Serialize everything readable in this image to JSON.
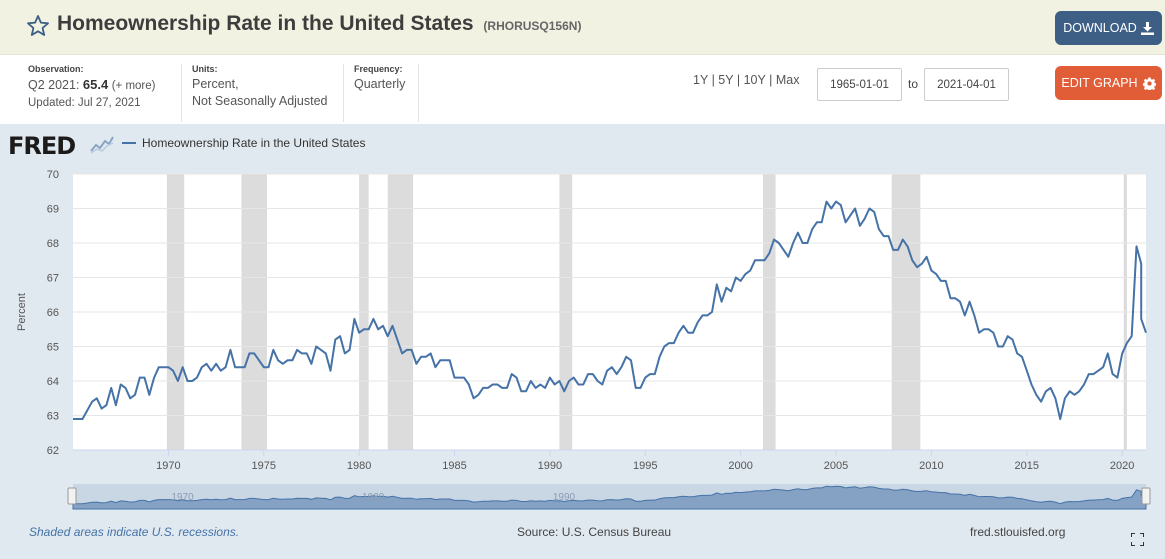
{
  "header": {
    "title": "Homeownership Rate in the United States",
    "series_id": "(RHORUSQ156N)",
    "download_label": "DOWNLOAD"
  },
  "meta": {
    "observation_label": "Observation:",
    "observation_period": "Q2 2021:",
    "observation_value": "65.4",
    "observation_more": "(+ more)",
    "updated": "Updated: Jul 27, 2021",
    "units_label": "Units:",
    "units_line1": "Percent,",
    "units_line2": "Not Seasonally Adjusted",
    "frequency_label": "Frequency:",
    "frequency_value": "Quarterly"
  },
  "controls": {
    "range_1y": "1Y",
    "range_5y": "5Y",
    "range_10y": "10Y",
    "range_max": "Max",
    "separator": "|",
    "start_date": "1965-01-01",
    "to_label": "to",
    "end_date": "2021-04-01",
    "edit_label": "EDIT GRAPH"
  },
  "logo": {
    "text": "FRED"
  },
  "footer": {
    "recession_note": "Shaded areas indicate U.S. recessions.",
    "source": "Source: U.S. Census Bureau",
    "url": "fred.stlouisfed.org"
  },
  "colors": {
    "line": "#4572a7",
    "recession": "#dcdcdc",
    "download": "#3d5f86",
    "edit": "#e05d37",
    "panel": "#e1e9f0"
  },
  "chart_data": {
    "type": "line",
    "ylabel": "Percent",
    "ylim": [
      62,
      70
    ],
    "yticks": [
      "62",
      "63",
      "64",
      "65",
      "66",
      "67",
      "68",
      "69",
      "70"
    ],
    "xlim": [
      1965.0,
      2021.25
    ],
    "xticks": [
      "1970",
      "1975",
      "1980",
      "1985",
      "1990",
      "1995",
      "2000",
      "2005",
      "2010",
      "2015",
      "2020"
    ],
    "navigator_labels": [
      "1970",
      "1980",
      "1990"
    ],
    "grid": true,
    "legend_position": "top-left",
    "recessions": [
      [
        1969.92,
        1970.83
      ],
      [
        1973.83,
        1975.17
      ],
      [
        1980.0,
        1980.5
      ],
      [
        1981.5,
        1982.83
      ],
      [
        1990.5,
        1991.17
      ],
      [
        2001.17,
        2001.83
      ],
      [
        2007.92,
        2009.42
      ],
      [
        2020.08,
        2020.25
      ]
    ],
    "series": [
      {
        "name": "Homeownership Rate in the United States",
        "points": [
          [
            1965.0,
            62.9
          ],
          [
            1965.5,
            62.9
          ],
          [
            1966.0,
            63.4
          ],
          [
            1966.25,
            63.5
          ],
          [
            1966.5,
            63.2
          ],
          [
            1966.75,
            63.3
          ],
          [
            1967.0,
            63.8
          ],
          [
            1967.25,
            63.3
          ],
          [
            1967.5,
            63.9
          ],
          [
            1967.75,
            63.8
          ],
          [
            1968.0,
            63.5
          ],
          [
            1968.25,
            63.6
          ],
          [
            1968.5,
            64.1
          ],
          [
            1968.75,
            64.1
          ],
          [
            1969.0,
            63.6
          ],
          [
            1969.25,
            64.1
          ],
          [
            1969.5,
            64.4
          ],
          [
            1969.75,
            64.4
          ],
          [
            1970.0,
            64.4
          ],
          [
            1970.25,
            64.3
          ],
          [
            1970.5,
            64.0
          ],
          [
            1970.75,
            64.4
          ],
          [
            1971.0,
            64.0
          ],
          [
            1971.25,
            64.0
          ],
          [
            1971.5,
            64.1
          ],
          [
            1971.75,
            64.4
          ],
          [
            1972.0,
            64.5
          ],
          [
            1972.25,
            64.3
          ],
          [
            1972.5,
            64.5
          ],
          [
            1972.75,
            64.3
          ],
          [
            1973.0,
            64.4
          ],
          [
            1973.25,
            64.9
          ],
          [
            1973.5,
            64.4
          ],
          [
            1973.75,
            64.4
          ],
          [
            1974.0,
            64.4
          ],
          [
            1974.25,
            64.8
          ],
          [
            1974.5,
            64.8
          ],
          [
            1974.75,
            64.6
          ],
          [
            1975.0,
            64.4
          ],
          [
            1975.25,
            64.4
          ],
          [
            1975.5,
            64.9
          ],
          [
            1975.75,
            64.6
          ],
          [
            1976.0,
            64.5
          ],
          [
            1976.25,
            64.6
          ],
          [
            1976.5,
            64.6
          ],
          [
            1976.75,
            64.9
          ],
          [
            1977.0,
            64.8
          ],
          [
            1977.25,
            64.8
          ],
          [
            1977.5,
            64.5
          ],
          [
            1977.75,
            65.0
          ],
          [
            1978.0,
            64.9
          ],
          [
            1978.25,
            64.8
          ],
          [
            1978.5,
            64.3
          ],
          [
            1978.75,
            65.2
          ],
          [
            1979.0,
            65.3
          ],
          [
            1979.25,
            64.8
          ],
          [
            1979.5,
            64.9
          ],
          [
            1979.75,
            65.8
          ],
          [
            1980.0,
            65.4
          ],
          [
            1980.25,
            65.5
          ],
          [
            1980.5,
            65.5
          ],
          [
            1980.75,
            65.8
          ],
          [
            1981.0,
            65.5
          ],
          [
            1981.25,
            65.6
          ],
          [
            1981.5,
            65.3
          ],
          [
            1981.75,
            65.6
          ],
          [
            1982.0,
            65.2
          ],
          [
            1982.25,
            64.8
          ],
          [
            1982.5,
            64.9
          ],
          [
            1982.75,
            64.9
          ],
          [
            1983.0,
            64.5
          ],
          [
            1983.25,
            64.7
          ],
          [
            1983.5,
            64.7
          ],
          [
            1983.75,
            64.8
          ],
          [
            1984.0,
            64.4
          ],
          [
            1984.25,
            64.6
          ],
          [
            1984.5,
            64.6
          ],
          [
            1984.75,
            64.6
          ],
          [
            1985.0,
            64.1
          ],
          [
            1985.25,
            64.1
          ],
          [
            1985.5,
            64.1
          ],
          [
            1985.75,
            63.9
          ],
          [
            1986.0,
            63.5
          ],
          [
            1986.25,
            63.6
          ],
          [
            1986.5,
            63.8
          ],
          [
            1986.75,
            63.8
          ],
          [
            1987.0,
            63.9
          ],
          [
            1987.25,
            63.9
          ],
          [
            1987.5,
            63.8
          ],
          [
            1987.75,
            63.8
          ],
          [
            1988.0,
            64.2
          ],
          [
            1988.25,
            64.1
          ],
          [
            1988.5,
            63.7
          ],
          [
            1988.75,
            63.7
          ],
          [
            1989.0,
            64.0
          ],
          [
            1989.25,
            63.8
          ],
          [
            1989.5,
            63.9
          ],
          [
            1989.75,
            63.8
          ],
          [
            1990.0,
            64.1
          ],
          [
            1990.25,
            63.9
          ],
          [
            1990.5,
            64.0
          ],
          [
            1990.75,
            63.7
          ],
          [
            1991.0,
            64.0
          ],
          [
            1991.25,
            64.1
          ],
          [
            1991.5,
            63.9
          ],
          [
            1991.75,
            63.9
          ],
          [
            1992.0,
            64.2
          ],
          [
            1992.25,
            64.2
          ],
          [
            1992.5,
            64.0
          ],
          [
            1992.75,
            63.9
          ],
          [
            1993.0,
            64.3
          ],
          [
            1993.25,
            64.4
          ],
          [
            1993.5,
            64.2
          ],
          [
            1993.75,
            64.4
          ],
          [
            1994.0,
            64.7
          ],
          [
            1994.25,
            64.6
          ],
          [
            1994.5,
            63.8
          ],
          [
            1994.75,
            63.8
          ],
          [
            1995.0,
            64.1
          ],
          [
            1995.25,
            64.2
          ],
          [
            1995.5,
            64.2
          ],
          [
            1995.75,
            64.7
          ],
          [
            1996.0,
            65.0
          ],
          [
            1996.25,
            65.1
          ],
          [
            1996.5,
            65.1
          ],
          [
            1996.75,
            65.4
          ],
          [
            1997.0,
            65.6
          ],
          [
            1997.25,
            65.4
          ],
          [
            1997.5,
            65.4
          ],
          [
            1997.75,
            65.7
          ],
          [
            1998.0,
            65.9
          ],
          [
            1998.25,
            65.9
          ],
          [
            1998.5,
            66.0
          ],
          [
            1998.75,
            66.8
          ],
          [
            1999.0,
            66.3
          ],
          [
            1999.25,
            66.7
          ],
          [
            1999.5,
            66.6
          ],
          [
            1999.75,
            67.0
          ],
          [
            2000.0,
            66.9
          ],
          [
            2000.25,
            67.1
          ],
          [
            2000.5,
            67.2
          ],
          [
            2000.75,
            67.5
          ],
          [
            2001.0,
            67.5
          ],
          [
            2001.25,
            67.5
          ],
          [
            2001.5,
            67.7
          ],
          [
            2001.75,
            68.1
          ],
          [
            2002.0,
            68.0
          ],
          [
            2002.25,
            67.8
          ],
          [
            2002.5,
            67.6
          ],
          [
            2002.75,
            68.0
          ],
          [
            2003.0,
            68.3
          ],
          [
            2003.25,
            68.0
          ],
          [
            2003.5,
            68.0
          ],
          [
            2003.75,
            68.4
          ],
          [
            2004.0,
            68.6
          ],
          [
            2004.25,
            68.6
          ],
          [
            2004.5,
            69.2
          ],
          [
            2004.75,
            69.0
          ],
          [
            2005.0,
            69.2
          ],
          [
            2005.25,
            69.1
          ],
          [
            2005.5,
            68.6
          ],
          [
            2005.75,
            68.8
          ],
          [
            2006.0,
            69.0
          ],
          [
            2006.25,
            68.5
          ],
          [
            2006.5,
            68.7
          ],
          [
            2006.75,
            69.0
          ],
          [
            2007.0,
            68.9
          ],
          [
            2007.25,
            68.4
          ],
          [
            2007.5,
            68.2
          ],
          [
            2007.75,
            68.2
          ],
          [
            2008.0,
            67.8
          ],
          [
            2008.25,
            67.8
          ],
          [
            2008.5,
            68.1
          ],
          [
            2008.75,
            67.9
          ],
          [
            2009.0,
            67.5
          ],
          [
            2009.25,
            67.3
          ],
          [
            2009.5,
            67.4
          ],
          [
            2009.75,
            67.6
          ],
          [
            2010.0,
            67.2
          ],
          [
            2010.25,
            67.1
          ],
          [
            2010.5,
            66.9
          ],
          [
            2010.75,
            66.9
          ],
          [
            2011.0,
            66.4
          ],
          [
            2011.25,
            66.4
          ],
          [
            2011.5,
            66.3
          ],
          [
            2011.75,
            65.9
          ],
          [
            2012.0,
            66.3
          ],
          [
            2012.25,
            65.9
          ],
          [
            2012.5,
            65.4
          ],
          [
            2012.75,
            65.5
          ],
          [
            2013.0,
            65.5
          ],
          [
            2013.25,
            65.4
          ],
          [
            2013.5,
            65.0
          ],
          [
            2013.75,
            65.0
          ],
          [
            2014.0,
            65.3
          ],
          [
            2014.25,
            65.2
          ],
          [
            2014.5,
            64.8
          ],
          [
            2014.75,
            64.7
          ],
          [
            2015.0,
            64.3
          ],
          [
            2015.25,
            63.9
          ],
          [
            2015.5,
            63.6
          ],
          [
            2015.75,
            63.4
          ],
          [
            2016.0,
            63.7
          ],
          [
            2016.25,
            63.8
          ],
          [
            2016.5,
            63.5
          ],
          [
            2016.75,
            62.9
          ],
          [
            2017.0,
            63.5
          ],
          [
            2017.25,
            63.7
          ],
          [
            2017.5,
            63.6
          ],
          [
            2017.75,
            63.7
          ],
          [
            2018.0,
            63.9
          ],
          [
            2018.25,
            64.2
          ],
          [
            2018.5,
            64.2
          ],
          [
            2018.75,
            64.3
          ],
          [
            2019.0,
            64.4
          ],
          [
            2019.25,
            64.8
          ],
          [
            2019.5,
            64.2
          ],
          [
            2019.75,
            64.1
          ],
          [
            2020.0,
            64.8
          ],
          [
            2020.25,
            65.1
          ],
          [
            2020.5,
            65.3
          ],
          [
            2020.75,
            67.9
          ],
          [
            2021.0,
            67.4
          ],
          [
            2021.0,
            65.8
          ],
          [
            2021.25,
            65.4
          ]
        ]
      }
    ]
  }
}
